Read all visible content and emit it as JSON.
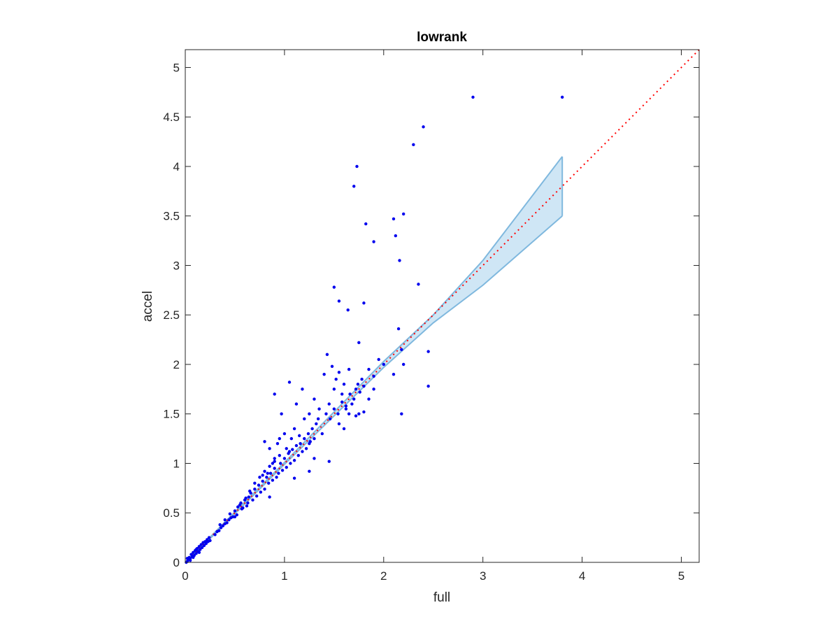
{
  "chart_data": {
    "type": "scatter",
    "title": "lowrank",
    "xlabel": "full",
    "ylabel": "accel",
    "xlim": [
      0,
      5.18
    ],
    "ylim": [
      0,
      5.18
    ],
    "xticks": [
      0,
      1,
      2,
      3,
      4,
      5
    ],
    "yticks": [
      0,
      0.5,
      1,
      1.5,
      2,
      2.5,
      3,
      3.5,
      4,
      4.5,
      5
    ],
    "xtick_labels": [
      "0",
      "1",
      "2",
      "3",
      "4",
      "5"
    ],
    "ytick_labels": [
      "0",
      "0.5",
      "1",
      "1.5",
      "2",
      "2.5",
      "3",
      "3.5",
      "4",
      "4.5",
      "5"
    ],
    "grid": false,
    "box": true,
    "colors": {
      "points": "#0000ee",
      "band_fill": "#cfe6f5",
      "band_edge": "#7fb8de",
      "diagonal": "#ff0000",
      "axes": "#262626"
    },
    "points": [
      [
        0.01,
        0.0
      ],
      [
        0.02,
        0.01
      ],
      [
        0.03,
        0.03
      ],
      [
        0.04,
        0.05
      ],
      [
        0.05,
        0.04
      ],
      [
        0.06,
        0.08
      ],
      [
        0.07,
        0.06
      ],
      [
        0.08,
        0.1
      ],
      [
        0.09,
        0.07
      ],
      [
        0.1,
        0.12
      ],
      [
        0.11,
        0.09
      ],
      [
        0.12,
        0.14
      ],
      [
        0.13,
        0.11
      ],
      [
        0.14,
        0.16
      ],
      [
        0.15,
        0.13
      ],
      [
        0.16,
        0.18
      ],
      [
        0.17,
        0.15
      ],
      [
        0.18,
        0.2
      ],
      [
        0.19,
        0.17
      ],
      [
        0.2,
        0.21
      ],
      [
        0.21,
        0.19
      ],
      [
        0.22,
        0.23
      ],
      [
        0.23,
        0.21
      ],
      [
        0.24,
        0.25
      ],
      [
        0.25,
        0.22
      ],
      [
        0.02,
        0.04
      ],
      [
        0.05,
        0.02
      ],
      [
        0.08,
        0.05
      ],
      [
        0.11,
        0.13
      ],
      [
        0.14,
        0.1
      ],
      [
        0.3,
        0.28
      ],
      [
        0.32,
        0.31
      ],
      [
        0.34,
        0.32
      ],
      [
        0.36,
        0.35
      ],
      [
        0.38,
        0.37
      ],
      [
        0.4,
        0.39
      ],
      [
        0.42,
        0.4
      ],
      [
        0.44,
        0.43
      ],
      [
        0.46,
        0.45
      ],
      [
        0.48,
        0.46
      ],
      [
        0.35,
        0.38
      ],
      [
        0.4,
        0.43
      ],
      [
        0.45,
        0.49
      ],
      [
        0.5,
        0.52
      ],
      [
        0.52,
        0.48
      ],
      [
        0.55,
        0.58
      ],
      [
        0.57,
        0.54
      ],
      [
        0.6,
        0.63
      ],
      [
        0.62,
        0.57
      ],
      [
        0.64,
        0.66
      ],
      [
        0.5,
        0.46
      ],
      [
        0.53,
        0.56
      ],
      [
        0.56,
        0.6
      ],
      [
        0.58,
        0.55
      ],
      [
        0.61,
        0.65
      ],
      [
        0.63,
        0.6
      ],
      [
        0.66,
        0.7
      ],
      [
        0.68,
        0.63
      ],
      [
        0.7,
        0.74
      ],
      [
        0.72,
        0.67
      ],
      [
        0.74,
        0.78
      ],
      [
        0.76,
        0.71
      ],
      [
        0.78,
        0.82
      ],
      [
        0.8,
        0.74
      ],
      [
        0.82,
        0.86
      ],
      [
        0.84,
        0.8
      ],
      [
        0.86,
        0.9
      ],
      [
        0.88,
        0.83
      ],
      [
        0.9,
        0.95
      ],
      [
        0.92,
        0.86
      ],
      [
        0.65,
        0.72
      ],
      [
        0.7,
        0.8
      ],
      [
        0.75,
        0.86
      ],
      [
        0.8,
        0.92
      ],
      [
        0.85,
        0.97
      ],
      [
        0.9,
        1.02
      ],
      [
        0.95,
        1.08
      ],
      [
        0.78,
        0.88
      ],
      [
        0.83,
        0.9
      ],
      [
        0.88,
        1.0
      ],
      [
        0.94,
        0.9
      ],
      [
        0.96,
        1.0
      ],
      [
        0.98,
        0.93
      ],
      [
        1.0,
        1.05
      ],
      [
        1.02,
        0.96
      ],
      [
        1.04,
        1.1
      ],
      [
        1.06,
        1.0
      ],
      [
        1.08,
        1.14
      ],
      [
        1.1,
        1.03
      ],
      [
        1.12,
        1.18
      ],
      [
        0.8,
        1.22
      ],
      [
        0.85,
        1.15
      ],
      [
        0.9,
        1.05
      ],
      [
        0.95,
        1.25
      ],
      [
        1.0,
        1.3
      ],
      [
        1.05,
        1.12
      ],
      [
        1.1,
        1.35
      ],
      [
        1.15,
        1.28
      ],
      [
        1.2,
        1.45
      ],
      [
        1.25,
        1.2
      ],
      [
        1.14,
        1.08
      ],
      [
        1.16,
        1.2
      ],
      [
        1.18,
        1.12
      ],
      [
        1.2,
        1.25
      ],
      [
        1.22,
        1.15
      ],
      [
        1.24,
        1.3
      ],
      [
        1.26,
        1.22
      ],
      [
        1.28,
        1.35
      ],
      [
        1.3,
        1.25
      ],
      [
        1.32,
        1.4
      ],
      [
        0.9,
        1.7
      ],
      [
        0.97,
        1.5
      ],
      [
        1.05,
        1.82
      ],
      [
        1.12,
        1.6
      ],
      [
        1.18,
        1.75
      ],
      [
        1.25,
        1.5
      ],
      [
        1.3,
        1.65
      ],
      [
        1.35,
        1.55
      ],
      [
        1.4,
        1.9
      ],
      [
        1.43,
        2.1
      ],
      [
        1.45,
        1.6
      ],
      [
        1.48,
        1.98
      ],
      [
        1.5,
        1.75
      ],
      [
        1.52,
        1.85
      ],
      [
        1.55,
        1.92
      ],
      [
        1.58,
        1.7
      ],
      [
        1.6,
        1.8
      ],
      [
        1.62,
        1.55
      ],
      [
        1.65,
        1.95
      ],
      [
        1.68,
        1.6
      ],
      [
        1.34,
        1.45
      ],
      [
        1.38,
        1.3
      ],
      [
        1.42,
        1.5
      ],
      [
        1.46,
        1.45
      ],
      [
        1.5,
        1.55
      ],
      [
        1.54,
        1.5
      ],
      [
        1.58,
        1.62
      ],
      [
        1.62,
        1.58
      ],
      [
        1.66,
        1.7
      ],
      [
        1.7,
        1.65
      ],
      [
        1.72,
        1.75
      ],
      [
        1.74,
        1.8
      ],
      [
        1.76,
        1.72
      ],
      [
        1.78,
        1.85
      ],
      [
        1.8,
        1.78
      ],
      [
        1.85,
        1.95
      ],
      [
        1.9,
        1.88
      ],
      [
        1.95,
        2.05
      ],
      [
        2.0,
        2.0
      ],
      [
        1.75,
        2.22
      ],
      [
        0.85,
        0.66
      ],
      [
        1.1,
        0.85
      ],
      [
        1.25,
        0.92
      ],
      [
        1.3,
        1.05
      ],
      [
        1.45,
        1.02
      ],
      [
        1.55,
        1.4
      ],
      [
        1.6,
        1.35
      ],
      [
        1.75,
        1.5
      ],
      [
        1.85,
        1.65
      ],
      [
        1.9,
        1.75
      ],
      [
        1.5,
        2.78
      ],
      [
        1.55,
        2.64
      ],
      [
        1.64,
        2.55
      ],
      [
        1.8,
        2.62
      ],
      [
        1.7,
        3.8
      ],
      [
        1.73,
        4.0
      ],
      [
        1.82,
        3.42
      ],
      [
        1.9,
        3.24
      ],
      [
        2.1,
        3.47
      ],
      [
        2.12,
        3.3
      ],
      [
        2.2,
        3.52
      ],
      [
        2.16,
        3.05
      ],
      [
        2.15,
        2.36
      ],
      [
        2.1,
        1.9
      ],
      [
        2.18,
        2.15
      ],
      [
        2.2,
        2.0
      ],
      [
        2.18,
        1.5
      ],
      [
        2.35,
        2.81
      ],
      [
        2.3,
        4.22
      ],
      [
        2.4,
        4.4
      ],
      [
        2.45,
        2.13
      ],
      [
        2.45,
        1.78
      ],
      [
        2.9,
        4.7
      ],
      [
        3.8,
        4.7
      ],
      [
        1.65,
        1.5
      ],
      [
        1.72,
        1.48
      ],
      [
        1.8,
        1.52
      ],
      [
        0.93,
        1.2
      ],
      [
        1.02,
        1.15
      ],
      [
        1.07,
        1.25
      ]
    ],
    "confidence_band": {
      "x": [
        0.05,
        0.5,
        1.0,
        1.5,
        2.0,
        2.5,
        3.0,
        3.8
      ],
      "upper": [
        0.05,
        0.51,
        1.01,
        1.52,
        2.03,
        2.5,
        3.05,
        4.1
      ],
      "lower": [
        0.04,
        0.49,
        0.99,
        1.48,
        1.97,
        2.42,
        2.8,
        3.5
      ]
    },
    "reference_line": {
      "x": [
        0,
        5.18
      ],
      "y": [
        0,
        5.18
      ]
    }
  }
}
